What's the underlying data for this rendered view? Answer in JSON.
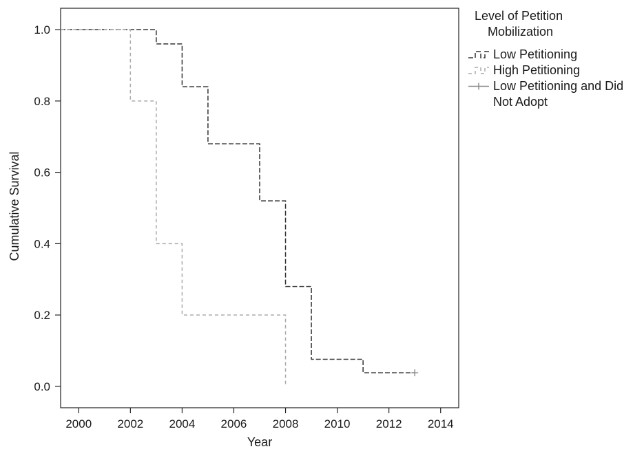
{
  "chart_data": {
    "type": "line",
    "xlabel": "Year",
    "ylabel": "Cumulative Survival",
    "xlim": [
      1999.3,
      2014.7
    ],
    "ylim": [
      -0.06,
      1.06
    ],
    "xticks": [
      2000,
      2002,
      2004,
      2006,
      2008,
      2010,
      2012,
      2014
    ],
    "yticks": [
      0.0,
      0.2,
      0.4,
      0.6,
      0.8,
      1.0
    ],
    "ytick_labels": [
      "0.0",
      "0.2",
      "0.4",
      "0.6",
      "0.8",
      "1.0"
    ],
    "legend": {
      "title_line1": "Level of Petition",
      "title_line2": "Mobilization",
      "placement": "outside-right-top"
    },
    "series": [
      {
        "name": "Low Petitioning",
        "step": true,
        "color": "#333333",
        "dash": "long",
        "x": [
          1999.3,
          2003,
          2004,
          2005,
          2007,
          2008,
          2009,
          2011,
          2013
        ],
        "y": [
          1.0,
          0.96,
          0.84,
          0.68,
          0.52,
          0.28,
          0.076,
          0.038,
          0.038
        ]
      },
      {
        "name": "High Petitioning",
        "step": true,
        "color": "#aaaaaa",
        "dash": "short",
        "x": [
          1999.3,
          2002,
          2003,
          2004,
          2008
        ],
        "y": [
          1.0,
          0.8,
          0.4,
          0.2,
          0.0
        ]
      },
      {
        "name": "Low Petitioning and Did Not Adopt",
        "step": false,
        "color": "#888888",
        "dash": "solid",
        "censor_marks": [
          [
            2013,
            0.038
          ]
        ],
        "x": [],
        "y": []
      }
    ]
  }
}
